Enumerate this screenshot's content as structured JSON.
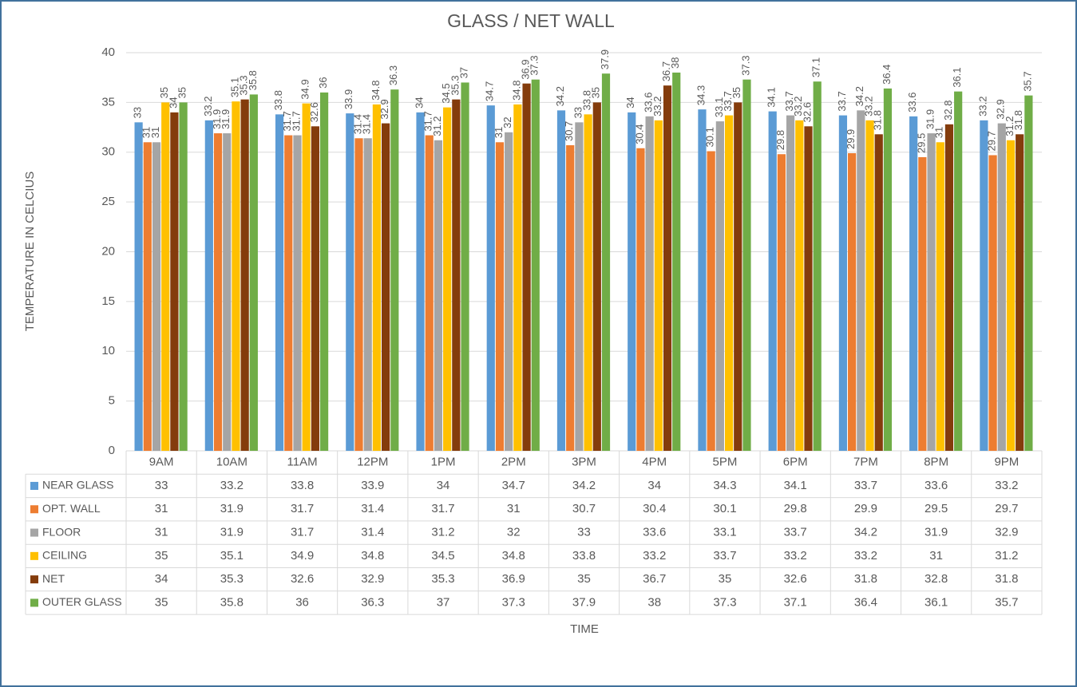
{
  "chart_data": {
    "type": "bar",
    "title": "GLASS / NET WALL",
    "y_label": "TEMPERATURE IN CELCIUS",
    "x_label": "TIME",
    "categories": [
      "9AM",
      "10AM",
      "11AM",
      "12PM",
      "1PM",
      "2PM",
      "3PM",
      "4PM",
      "5PM",
      "6PM",
      "7PM",
      "8PM",
      "9PM"
    ],
    "series": [
      {
        "name": "NEAR GLASS",
        "color": "#5b9bd5",
        "values": [
          33,
          33.2,
          33.8,
          33.9,
          34,
          34.7,
          34.2,
          34,
          34.3,
          34.1,
          33.7,
          33.6,
          33.2
        ]
      },
      {
        "name": "OPT. WALL",
        "color": "#ed7d31",
        "values": [
          31,
          31.9,
          31.7,
          31.4,
          31.7,
          31,
          30.7,
          30.4,
          30.1,
          29.8,
          29.9,
          29.5,
          29.7
        ]
      },
      {
        "name": "FLOOR",
        "color": "#a5a5a5",
        "values": [
          31,
          31.9,
          31.7,
          31.4,
          31.2,
          32,
          33,
          33.6,
          33.1,
          33.7,
          34.2,
          31.9,
          32.9
        ]
      },
      {
        "name": "CEILING",
        "color": "#ffc000",
        "values": [
          35,
          35.1,
          34.9,
          34.8,
          34.5,
          34.8,
          33.8,
          33.2,
          33.7,
          33.2,
          33.2,
          31,
          31.2
        ]
      },
      {
        "name": "NET",
        "color": "#843c0c",
        "values": [
          34,
          35.3,
          32.6,
          32.9,
          35.3,
          36.9,
          35,
          36.7,
          35,
          32.6,
          31.8,
          32.8,
          31.8
        ]
      },
      {
        "name": "OUTER GLASS",
        "color": "#70ad47",
        "values": [
          35,
          35.8,
          36,
          36.3,
          37,
          37.3,
          37.9,
          38,
          37.3,
          37.1,
          36.4,
          36.1,
          35.7
        ]
      }
    ],
    "ylim": [
      0,
      40
    ],
    "yticks": [
      0,
      5,
      10,
      15,
      20,
      25,
      30,
      35,
      40
    ],
    "grid": true
  }
}
